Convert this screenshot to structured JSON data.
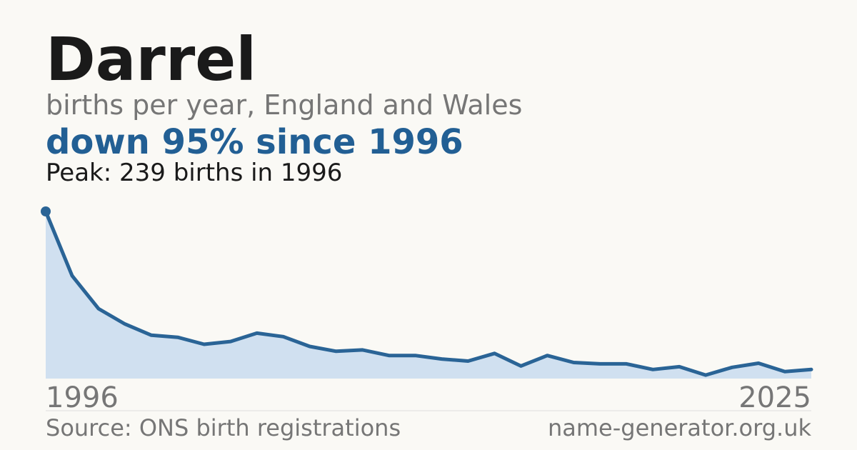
{
  "chart_data": {
    "type": "line",
    "title": "Darrel",
    "subtitle": "births per year, England and Wales",
    "annotation": "down 95% since 1996",
    "peak_label": "Peak: 239 births in 1996",
    "source": "Source: ONS birth registrations",
    "site": "name-generator.org.uk",
    "x": [
      1996,
      1997,
      1998,
      1999,
      2000,
      2001,
      2002,
      2003,
      2004,
      2005,
      2006,
      2007,
      2008,
      2009,
      2010,
      2011,
      2012,
      2013,
      2014,
      2015,
      2016,
      2017,
      2018,
      2019,
      2020,
      2021,
      2022,
      2023,
      2024,
      2025
    ],
    "series": [
      {
        "name": "Darrel",
        "color": "#2a6496",
        "values": [
          239,
          147,
          100,
          78,
          62,
          59,
          49,
          53,
          65,
          60,
          46,
          39,
          41,
          33,
          33,
          28,
          25,
          36,
          18,
          33,
          23,
          21,
          21,
          13,
          17,
          5,
          16,
          22,
          10,
          13
        ]
      }
    ],
    "fill_color": "#d0e0f0",
    "xlim": [
      1996,
      2025
    ],
    "xticks": [
      1996,
      2025
    ],
    "ylim": [
      0,
      239
    ]
  }
}
